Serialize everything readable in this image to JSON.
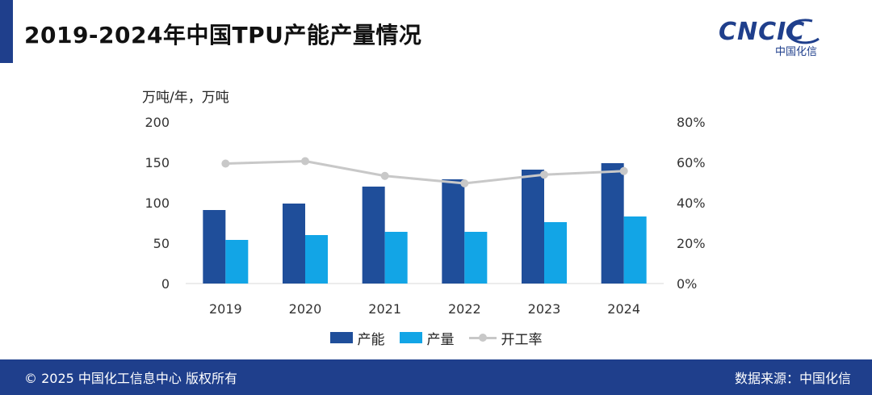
{
  "header": {
    "title": "2019-2024年中国TPU产能产量情况",
    "logo_text": "CNCIC",
    "logo_sub": "中国化信"
  },
  "chart_data": {
    "type": "bar",
    "title": "2019-2024年中国TPU产能产量情况",
    "ylabel": "万吨/年，万吨",
    "categories": [
      "2019",
      "2020",
      "2021",
      "2022",
      "2023",
      "2024"
    ],
    "ylim": [
      0,
      200
    ],
    "yticks": [
      "0",
      "50",
      "100",
      "150",
      "200"
    ],
    "y2lim": [
      0,
      80
    ],
    "y2ticks": [
      "0%",
      "20%",
      "40%",
      "60%",
      "80%"
    ],
    "series": [
      {
        "name": "产能",
        "type": "bar",
        "axis": "left",
        "color": "#1f4e9a",
        "values": [
          91,
          99,
          120,
          129,
          141,
          149
        ]
      },
      {
        "name": "产量",
        "type": "bar",
        "axis": "left",
        "color": "#12a5e6",
        "values": [
          54,
          60,
          64,
          64,
          76,
          83
        ]
      },
      {
        "name": "开工率",
        "type": "line",
        "axis": "right",
        "color": "#c8c8c8",
        "values": [
          59.4,
          60.6,
          53.3,
          49.6,
          53.9,
          55.7
        ]
      }
    ],
    "grid": false,
    "legend": "bottom"
  },
  "footer": {
    "copyright": "© 2025 中国化工信息中心  版权所有",
    "source": "数据来源：中国化信"
  }
}
